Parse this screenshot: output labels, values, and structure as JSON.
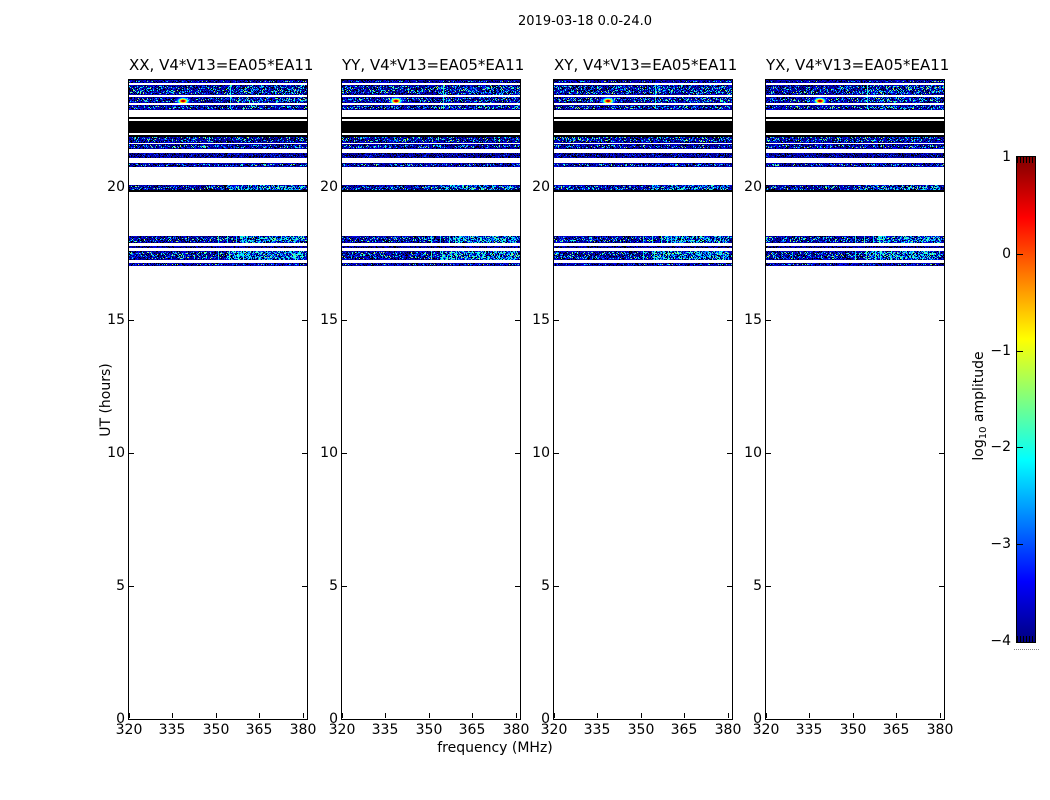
{
  "chart_data": {
    "type": "heatmap",
    "title": "2019-03-18 0.0-24.0",
    "panels": [
      {
        "key": "xx",
        "label": "XX, V4*V13=EA05*EA11"
      },
      {
        "key": "yy",
        "label": "YY, V4*V13=EA05*EA11"
      },
      {
        "key": "xy",
        "label": "XY, V4*V13=EA05*EA11"
      },
      {
        "key": "yx",
        "label": "YX, V4*V13=EA05*EA11"
      }
    ],
    "x_axis": {
      "label": "frequency (MHz)",
      "range": [
        320,
        381.5
      ],
      "ticks": [
        320,
        335,
        350,
        365,
        380
      ]
    },
    "y_axis": {
      "label": "UT (hours)",
      "range": [
        0,
        24
      ],
      "ticks": [
        0,
        5,
        10,
        15,
        20
      ]
    },
    "colorbar": {
      "label_pre": "log",
      "label_sub": "10",
      "label_post": " amplitude",
      "range": [
        -4,
        1
      ],
      "ticks": [
        1,
        0,
        -1,
        -2,
        -3,
        -4
      ],
      "colormap": "jet",
      "stops": [
        [
          0,
          "#000080"
        ],
        [
          0.125,
          "#0000ff"
        ],
        [
          0.375,
          "#00ffff"
        ],
        [
          0.625,
          "#ffff00"
        ],
        [
          0.875,
          "#ff0000"
        ],
        [
          1,
          "#800000"
        ]
      ]
    },
    "bands": [
      {
        "ut_start": 23.89,
        "ut_end": 24.0,
        "kind": "noise"
      },
      {
        "ut_start": 23.43,
        "ut_end": 23.83,
        "kind": "noise",
        "patch": [
          0.55,
          1.0
        ],
        "patch_p": 0.1
      },
      {
        "ut_start": 23.12,
        "ut_end": 23.37,
        "kind": "noise",
        "patch": [
          0.55,
          1.0
        ],
        "patch_p": 0.1
      },
      {
        "ut_start": 22.88,
        "ut_end": 23.05,
        "kind": "noise",
        "patch": [
          0.55,
          1.0
        ],
        "patch_p": 0.08
      },
      {
        "ut_start": 22.55,
        "ut_end": 22.62,
        "kind": "black"
      },
      {
        "ut_start": 22.02,
        "ut_end": 22.45,
        "kind": "black"
      },
      {
        "ut_start": 21.64,
        "ut_end": 21.95,
        "kind": "noise",
        "black_top": true
      },
      {
        "ut_start": 21.42,
        "ut_end": 21.61,
        "kind": "noise"
      },
      {
        "ut_start": 21.08,
        "ut_end": 21.26,
        "kind": "noise",
        "dark": true
      },
      {
        "ut_start": 20.72,
        "ut_end": 20.87,
        "kind": "noise"
      },
      {
        "ut_start": 19.81,
        "ut_end": 20.04,
        "kind": "noise",
        "black_bottom": true,
        "patch": [
          0.55,
          0.98
        ],
        "patch_p": 0.3
      },
      {
        "ut_start": 17.87,
        "ut_end": 18.15,
        "kind": "noise",
        "vlines": [
          0.5,
          0.55,
          0.6,
          0.635,
          0.66
        ],
        "patch": [
          0.62,
          0.98
        ],
        "patch_p": 0.4
      },
      {
        "ut_start": 17.68,
        "ut_end": 17.75,
        "kind": "noise",
        "dark": true
      },
      {
        "ut_start": 17.24,
        "ut_end": 17.56,
        "kind": "noise",
        "vlines": [
          0.5,
          0.56,
          0.61,
          0.64
        ],
        "patch": [
          0.55,
          0.98
        ],
        "patch_p": 0.4
      },
      {
        "ut_start": 17.01,
        "ut_end": 17.14,
        "kind": "noise"
      }
    ],
    "features": {
      "bright_spot": {
        "freq_mhz": 338.5,
        "ut": 23.23,
        "peak_log10_amp": 0.5
      },
      "rfi_line": {
        "freq_mhz": 354.8,
        "ut_start": 22.92,
        "ut_end": 23.85
      }
    }
  }
}
